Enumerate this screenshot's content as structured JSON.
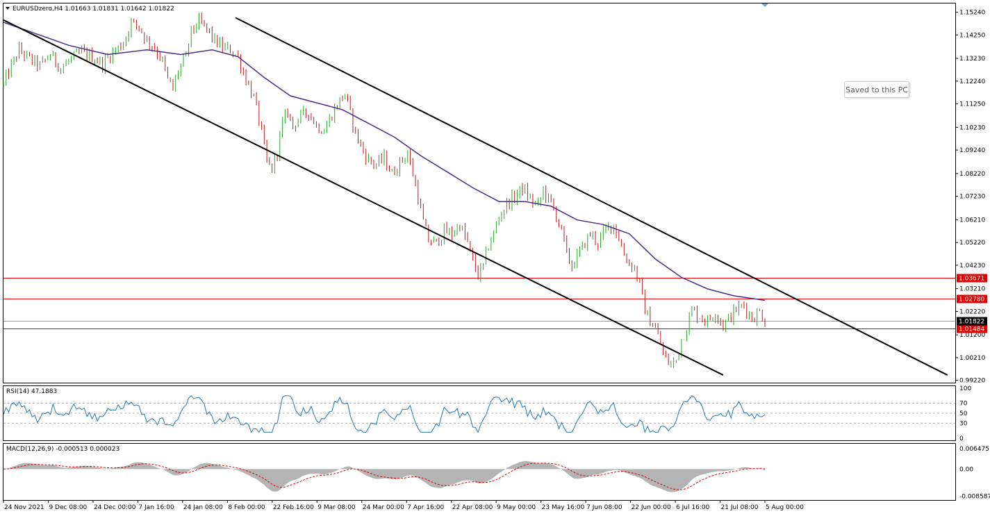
{
  "header": {
    "symbol_line": "EURUSDzero,H4  1.01663 1.01831 1.01642 1.01822"
  },
  "toast": {
    "text": "Saved to this PC"
  },
  "rsi_pane": {
    "label": "RSI(14) 47.1883"
  },
  "macd_pane": {
    "label": "MACD(12,26,9) -0.000513 0.000023"
  },
  "colors": {
    "bull": "#22a722",
    "bear": "#d01010",
    "ma": "#4b2a8a",
    "rsi": "#1f77b4",
    "support": "#e00000",
    "current_tag": "#000000",
    "channel": "#000000",
    "histogram": "#b4b4b4",
    "signal": "#e00000"
  },
  "chart_data": {
    "type": "candlestick",
    "price_ticks": [
      "1.15240",
      "1.14250",
      "1.13230",
      "1.12240",
      "1.11250",
      "1.10230",
      "1.09240",
      "1.08220",
      "1.07230",
      "1.06210",
      "1.05220",
      "1.04230",
      "1.03210",
      "1.02220",
      "1.01200",
      "1.00210",
      "0.99220"
    ],
    "time_ticks": [
      "24 Nov 2021",
      "9 Dec 08:00",
      "24 Dec 00:00",
      "7 Jan 16:00",
      "24 Jan 08:00",
      "8 Feb 00:00",
      "22 Feb 16:00",
      "9 Mar 08:00",
      "24 Mar 00:00",
      "7 Apr 16:00",
      "22 Apr 08:00",
      "9 May 00:00",
      "23 May 16:00",
      "7 Jun 08:00",
      "22 Jun 00:00",
      "6 Jul 16:00",
      "21 Jul 08:00",
      "5 Aug 00:00"
    ],
    "horizontal_levels": [
      {
        "price": 1.03671,
        "label": "1.03671"
      },
      {
        "price": 1.0278,
        "label": "1.02780"
      },
      {
        "price": 1.01484,
        "label": "1.01484"
      }
    ],
    "current_price": {
      "price": 1.01822,
      "label": "1.01822"
    },
    "price_path": [
      [
        0,
        1.121
      ],
      [
        3,
        1.129
      ],
      [
        6,
        1.136
      ],
      [
        10,
        1.132
      ],
      [
        14,
        1.129
      ],
      [
        18,
        1.134
      ],
      [
        22,
        1.128
      ],
      [
        26,
        1.132
      ],
      [
        30,
        1.135
      ],
      [
        34,
        1.133
      ],
      [
        38,
        1.13
      ],
      [
        42,
        1.135
      ],
      [
        46,
        1.139
      ],
      [
        49,
        1.148
      ],
      [
        52,
        1.146
      ],
      [
        55,
        1.14
      ],
      [
        58,
        1.137
      ],
      [
        61,
        1.131
      ],
      [
        63,
        1.123
      ],
      [
        65,
        1.119
      ],
      [
        67,
        1.127
      ],
      [
        70,
        1.133
      ],
      [
        72,
        1.144
      ],
      [
        75,
        1.148
      ],
      [
        78,
        1.145
      ],
      [
        81,
        1.14
      ],
      [
        84,
        1.137
      ],
      [
        87,
        1.136
      ],
      [
        90,
        1.133
      ],
      [
        92,
        1.126
      ],
      [
        95,
        1.118
      ],
      [
        97,
        1.111
      ],
      [
        99,
        1.1
      ],
      [
        101,
        1.087
      ],
      [
        103,
        1.084
      ],
      [
        105,
        1.092
      ],
      [
        107,
        1.104
      ],
      [
        109,
        1.109
      ],
      [
        111,
        1.103
      ],
      [
        114,
        1.107
      ],
      [
        117,
        1.109
      ],
      [
        120,
        1.103
      ],
      [
        123,
        1.101
      ],
      [
        126,
        1.108
      ],
      [
        129,
        1.114
      ],
      [
        131,
        1.117
      ],
      [
        133,
        1.108
      ],
      [
        135,
        1.1
      ],
      [
        137,
        1.094
      ],
      [
        140,
        1.088
      ],
      [
        143,
        1.086
      ],
      [
        146,
        1.089
      ],
      [
        149,
        1.082
      ],
      [
        152,
        1.087
      ],
      [
        155,
        1.091
      ],
      [
        157,
        1.082
      ],
      [
        159,
        1.072
      ],
      [
        161,
        1.061
      ],
      [
        163,
        1.053
      ],
      [
        166,
        1.052
      ],
      [
        169,
        1.057
      ],
      [
        172,
        1.056
      ],
      [
        175,
        1.06
      ],
      [
        178,
        1.052
      ],
      [
        180,
        1.044
      ],
      [
        182,
        1.038
      ],
      [
        184,
        1.042
      ],
      [
        186,
        1.051
      ],
      [
        188,
        1.056
      ],
      [
        190,
        1.063
      ],
      [
        193,
        1.069
      ],
      [
        196,
        1.072
      ],
      [
        199,
        1.076
      ],
      [
        202,
        1.071
      ],
      [
        205,
        1.068
      ],
      [
        207,
        1.075
      ],
      [
        210,
        1.069
      ],
      [
        212,
        1.064
      ],
      [
        214,
        1.057
      ],
      [
        216,
        1.047
      ],
      [
        218,
        1.042
      ],
      [
        220,
        1.046
      ],
      [
        222,
        1.05
      ],
      [
        225,
        1.056
      ],
      [
        228,
        1.052
      ],
      [
        231,
        1.058
      ],
      [
        234,
        1.06
      ],
      [
        236,
        1.054
      ],
      [
        238,
        1.047
      ],
      [
        240,
        1.043
      ],
      [
        242,
        1.041
      ],
      [
        244,
        1.034
      ],
      [
        246,
        1.023
      ],
      [
        248,
        1.018
      ],
      [
        250,
        1.015
      ],
      [
        252,
        1.008
      ],
      [
        254,
        1.001
      ],
      [
        256,
        0.999
      ],
      [
        258,
        1.001
      ],
      [
        260,
        1.01
      ],
      [
        262,
        1.015
      ],
      [
        264,
        1.023
      ],
      [
        267,
        1.02
      ],
      [
        270,
        1.018
      ],
      [
        273,
        1.022
      ],
      [
        276,
        1.016
      ],
      [
        278,
        1.019
      ],
      [
        281,
        1.023
      ],
      [
        284,
        1.025
      ],
      [
        287,
        1.019
      ],
      [
        290,
        1.022
      ],
      [
        292,
        1.0182
      ]
    ],
    "moving_average": [
      [
        0,
        1.148
      ],
      [
        25,
        1.138
      ],
      [
        40,
        1.134
      ],
      [
        55,
        1.136
      ],
      [
        68,
        1.134
      ],
      [
        80,
        1.136
      ],
      [
        90,
        1.133
      ],
      [
        100,
        1.124
      ],
      [
        110,
        1.116
      ],
      [
        120,
        1.113
      ],
      [
        130,
        1.11
      ],
      [
        140,
        1.104
      ],
      [
        150,
        1.098
      ],
      [
        160,
        1.09
      ],
      [
        170,
        1.083
      ],
      [
        180,
        1.076
      ],
      [
        190,
        1.07
      ],
      [
        200,
        1.07
      ],
      [
        210,
        1.068
      ],
      [
        220,
        1.062
      ],
      [
        230,
        1.06
      ],
      [
        240,
        1.056
      ],
      [
        250,
        1.045
      ],
      [
        260,
        1.037
      ],
      [
        270,
        1.032
      ],
      [
        280,
        1.029
      ],
      [
        292,
        1.027
      ]
    ],
    "channel_lines": [
      {
        "from": [
          0,
          1.149
        ],
        "to": [
          276,
          0.9945
        ]
      },
      {
        "from": [
          89,
          1.15
        ],
        "to": [
          362,
          0.9945
        ]
      }
    ],
    "price_range": [
      0.9912,
      1.1562
    ],
    "rsi": {
      "period": 14,
      "value": 47.1883,
      "levels": [
        70,
        50,
        30
      ],
      "scale_ticks": [
        "100",
        "70",
        "50",
        "30",
        "0"
      ],
      "range": [
        0,
        100
      ]
    },
    "macd": {
      "fast": 12,
      "slow": 26,
      "signal": 9,
      "main": -0.000513,
      "signal_value": 2.3e-05,
      "scale_ticks": [
        "0.006475",
        "0.00",
        "-0.008587"
      ],
      "range": [
        -0.0098,
        0.008
      ]
    }
  }
}
